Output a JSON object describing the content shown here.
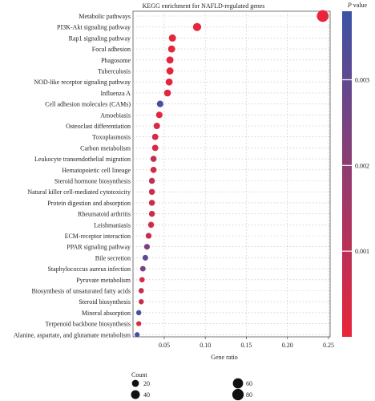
{
  "chart_data": {
    "type": "scatter",
    "title": "KEGG enrichment for NAFLD-regulated genes",
    "xlabel": "Gene ratio",
    "ylabel": "",
    "xlim": [
      0.012,
      0.252
    ],
    "xticks": [
      "0.05",
      "0.10",
      "0.15",
      "0.20",
      "0.25"
    ],
    "grid": true,
    "colorbar": {
      "title_italic": "P",
      "title_rest": " value",
      "ticks": [
        "0.003",
        "0.002",
        "0.001"
      ],
      "low_color": "#e8253a",
      "high_color": "#3b53a5",
      "range": [
        0,
        0.0038
      ]
    },
    "size_legend": {
      "title": "Count",
      "entries": [
        {
          "label": "20",
          "count": 20
        },
        {
          "label": "40",
          "count": 40
        },
        {
          "label": "60",
          "count": 60
        },
        {
          "label": "80",
          "count": 80
        }
      ]
    },
    "points": [
      {
        "term": "Metabolic pathways",
        "gene_ratio": 0.243,
        "count": 85,
        "p": 0.0
      },
      {
        "term": "PI3K-Akt signaling pathway",
        "gene_ratio": 0.09,
        "count": 32,
        "p": 5e-05
      },
      {
        "term": "Rap1 signaling pathway",
        "gene_ratio": 0.06,
        "count": 22,
        "p": 5e-05
      },
      {
        "term": "Focal adhesion",
        "gene_ratio": 0.059,
        "count": 21,
        "p": 5e-05
      },
      {
        "term": "Phagosome",
        "gene_ratio": 0.057,
        "count": 21,
        "p": 0.0001
      },
      {
        "term": "Tuberculosis",
        "gene_ratio": 0.057,
        "count": 21,
        "p": 0.0001
      },
      {
        "term": "NOD-like receptor signaling pathway",
        "gene_ratio": 0.056,
        "count": 20,
        "p": 0.0001
      },
      {
        "term": "Influenza A",
        "gene_ratio": 0.054,
        "count": 19,
        "p": 0.0002
      },
      {
        "term": "Cell adhesion molecules (CAMs)",
        "gene_ratio": 0.045,
        "count": 16,
        "p": 0.0035
      },
      {
        "term": "Amoebiasis",
        "gene_ratio": 0.044,
        "count": 16,
        "p": 0.0002
      },
      {
        "term": "Osteoclast differentiation",
        "gene_ratio": 0.041,
        "count": 15,
        "p": 0.0003
      },
      {
        "term": "Toxoplasmosis",
        "gene_ratio": 0.039,
        "count": 14,
        "p": 0.0003
      },
      {
        "term": "Carbon metabolism",
        "gene_ratio": 0.039,
        "count": 14,
        "p": 0.0004
      },
      {
        "term": "Leukocyte transendothelial migration",
        "gene_ratio": 0.037,
        "count": 13,
        "p": 0.0009
      },
      {
        "term": "Hematopoietic cell lineage",
        "gene_ratio": 0.037,
        "count": 13,
        "p": 0.0005
      },
      {
        "term": "Steroid hormone biosynthesis",
        "gene_ratio": 0.035,
        "count": 12,
        "p": 0.0009
      },
      {
        "term": "Natural killer cell-mediated cytotoxicity",
        "gene_ratio": 0.035,
        "count": 12,
        "p": 0.0006
      },
      {
        "term": "Protein digestion and absorption",
        "gene_ratio": 0.035,
        "count": 12,
        "p": 0.0006
      },
      {
        "term": "Rheumatoid arthritis",
        "gene_ratio": 0.035,
        "count": 12,
        "p": 0.0006
      },
      {
        "term": "Leishmaniasis",
        "gene_ratio": 0.034,
        "count": 12,
        "p": 0.0005
      },
      {
        "term": "ECM-receptor interaction",
        "gene_ratio": 0.031,
        "count": 11,
        "p": 0.0007
      },
      {
        "term": "PPAR signaling pathway",
        "gene_ratio": 0.029,
        "count": 10,
        "p": 0.0024
      },
      {
        "term": "Bile secretion",
        "gene_ratio": 0.027,
        "count": 10,
        "p": 0.0031
      },
      {
        "term": "Staphylococcus aureus infection",
        "gene_ratio": 0.024,
        "count": 9,
        "p": 0.0024
      },
      {
        "term": "Pyruvate metabolism",
        "gene_ratio": 0.023,
        "count": 8,
        "p": 0.0004
      },
      {
        "term": "Biosynthesis of unsaturated fatty acids",
        "gene_ratio": 0.022,
        "count": 8,
        "p": 0.0007
      },
      {
        "term": "Steroid biosynthesis",
        "gene_ratio": 0.022,
        "count": 7,
        "p": 0.0007
      },
      {
        "term": "Mineral absorption",
        "gene_ratio": 0.019,
        "count": 7,
        "p": 0.0036
      },
      {
        "term": "Terpenoid backbone biosynthesis",
        "gene_ratio": 0.019,
        "count": 6,
        "p": 0.0004
      },
      {
        "term": "Alanine, aspartate, and glutamate metabolism",
        "gene_ratio": 0.017,
        "count": 6,
        "p": 0.0036
      }
    ]
  }
}
